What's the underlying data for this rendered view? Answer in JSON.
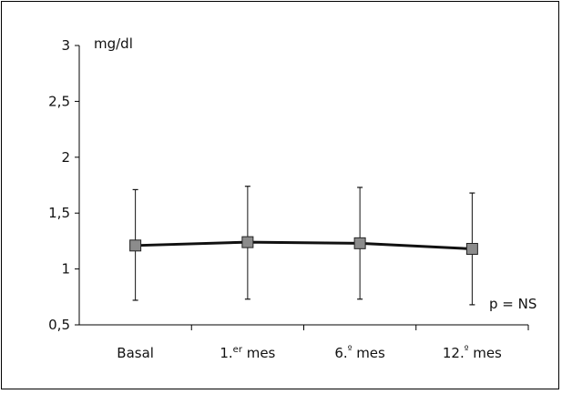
{
  "chart_data": {
    "type": "line",
    "ylabel": "mg/dl",
    "ylim": [
      0.5,
      3
    ],
    "yticks": [
      "0,5",
      "1",
      "1,5",
      "2",
      "2,5",
      "3"
    ],
    "ytick_values": [
      0.5,
      1,
      1.5,
      2,
      2.5,
      3
    ],
    "categories": [
      {
        "main": "Basal",
        "sup": "",
        "rest": ""
      },
      {
        "main": "1.",
        "sup": "er",
        "rest": " mes"
      },
      {
        "main": "6.",
        "sup": "º",
        "rest": " mes"
      },
      {
        "main": "12.",
        "sup": "º",
        "rest": " mes"
      }
    ],
    "series": [
      {
        "values": [
          1.21,
          1.24,
          1.23,
          1.18
        ],
        "error_low": [
          0.72,
          0.73,
          0.73,
          0.68
        ],
        "error_high": [
          1.71,
          1.74,
          1.73,
          1.68
        ]
      }
    ],
    "annotation": "p = NS",
    "grid": false,
    "legend": "none",
    "colors": {
      "line": "#111111",
      "marker": "#8c8c8c",
      "marker_edge": "#222222"
    }
  }
}
